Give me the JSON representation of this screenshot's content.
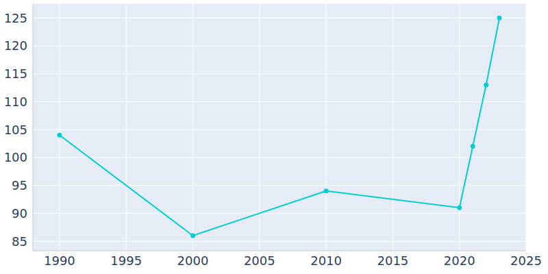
{
  "chart_data": {
    "type": "line",
    "x": [
      1990,
      2000,
      2010,
      2020,
      2021,
      2022,
      2023
    ],
    "values": [
      104,
      86,
      94,
      91,
      102,
      113,
      125
    ],
    "color": "#00ced1",
    "marker": "circle",
    "xlim": [
      1988,
      2025
    ],
    "xticks": [
      1990,
      1995,
      2000,
      2005,
      2010,
      2015,
      2020,
      2025
    ],
    "ylim": [
      83.3,
      127.6
    ],
    "yticks": [
      85,
      90,
      95,
      100,
      105,
      110,
      115,
      120,
      125
    ],
    "grid": true
  }
}
